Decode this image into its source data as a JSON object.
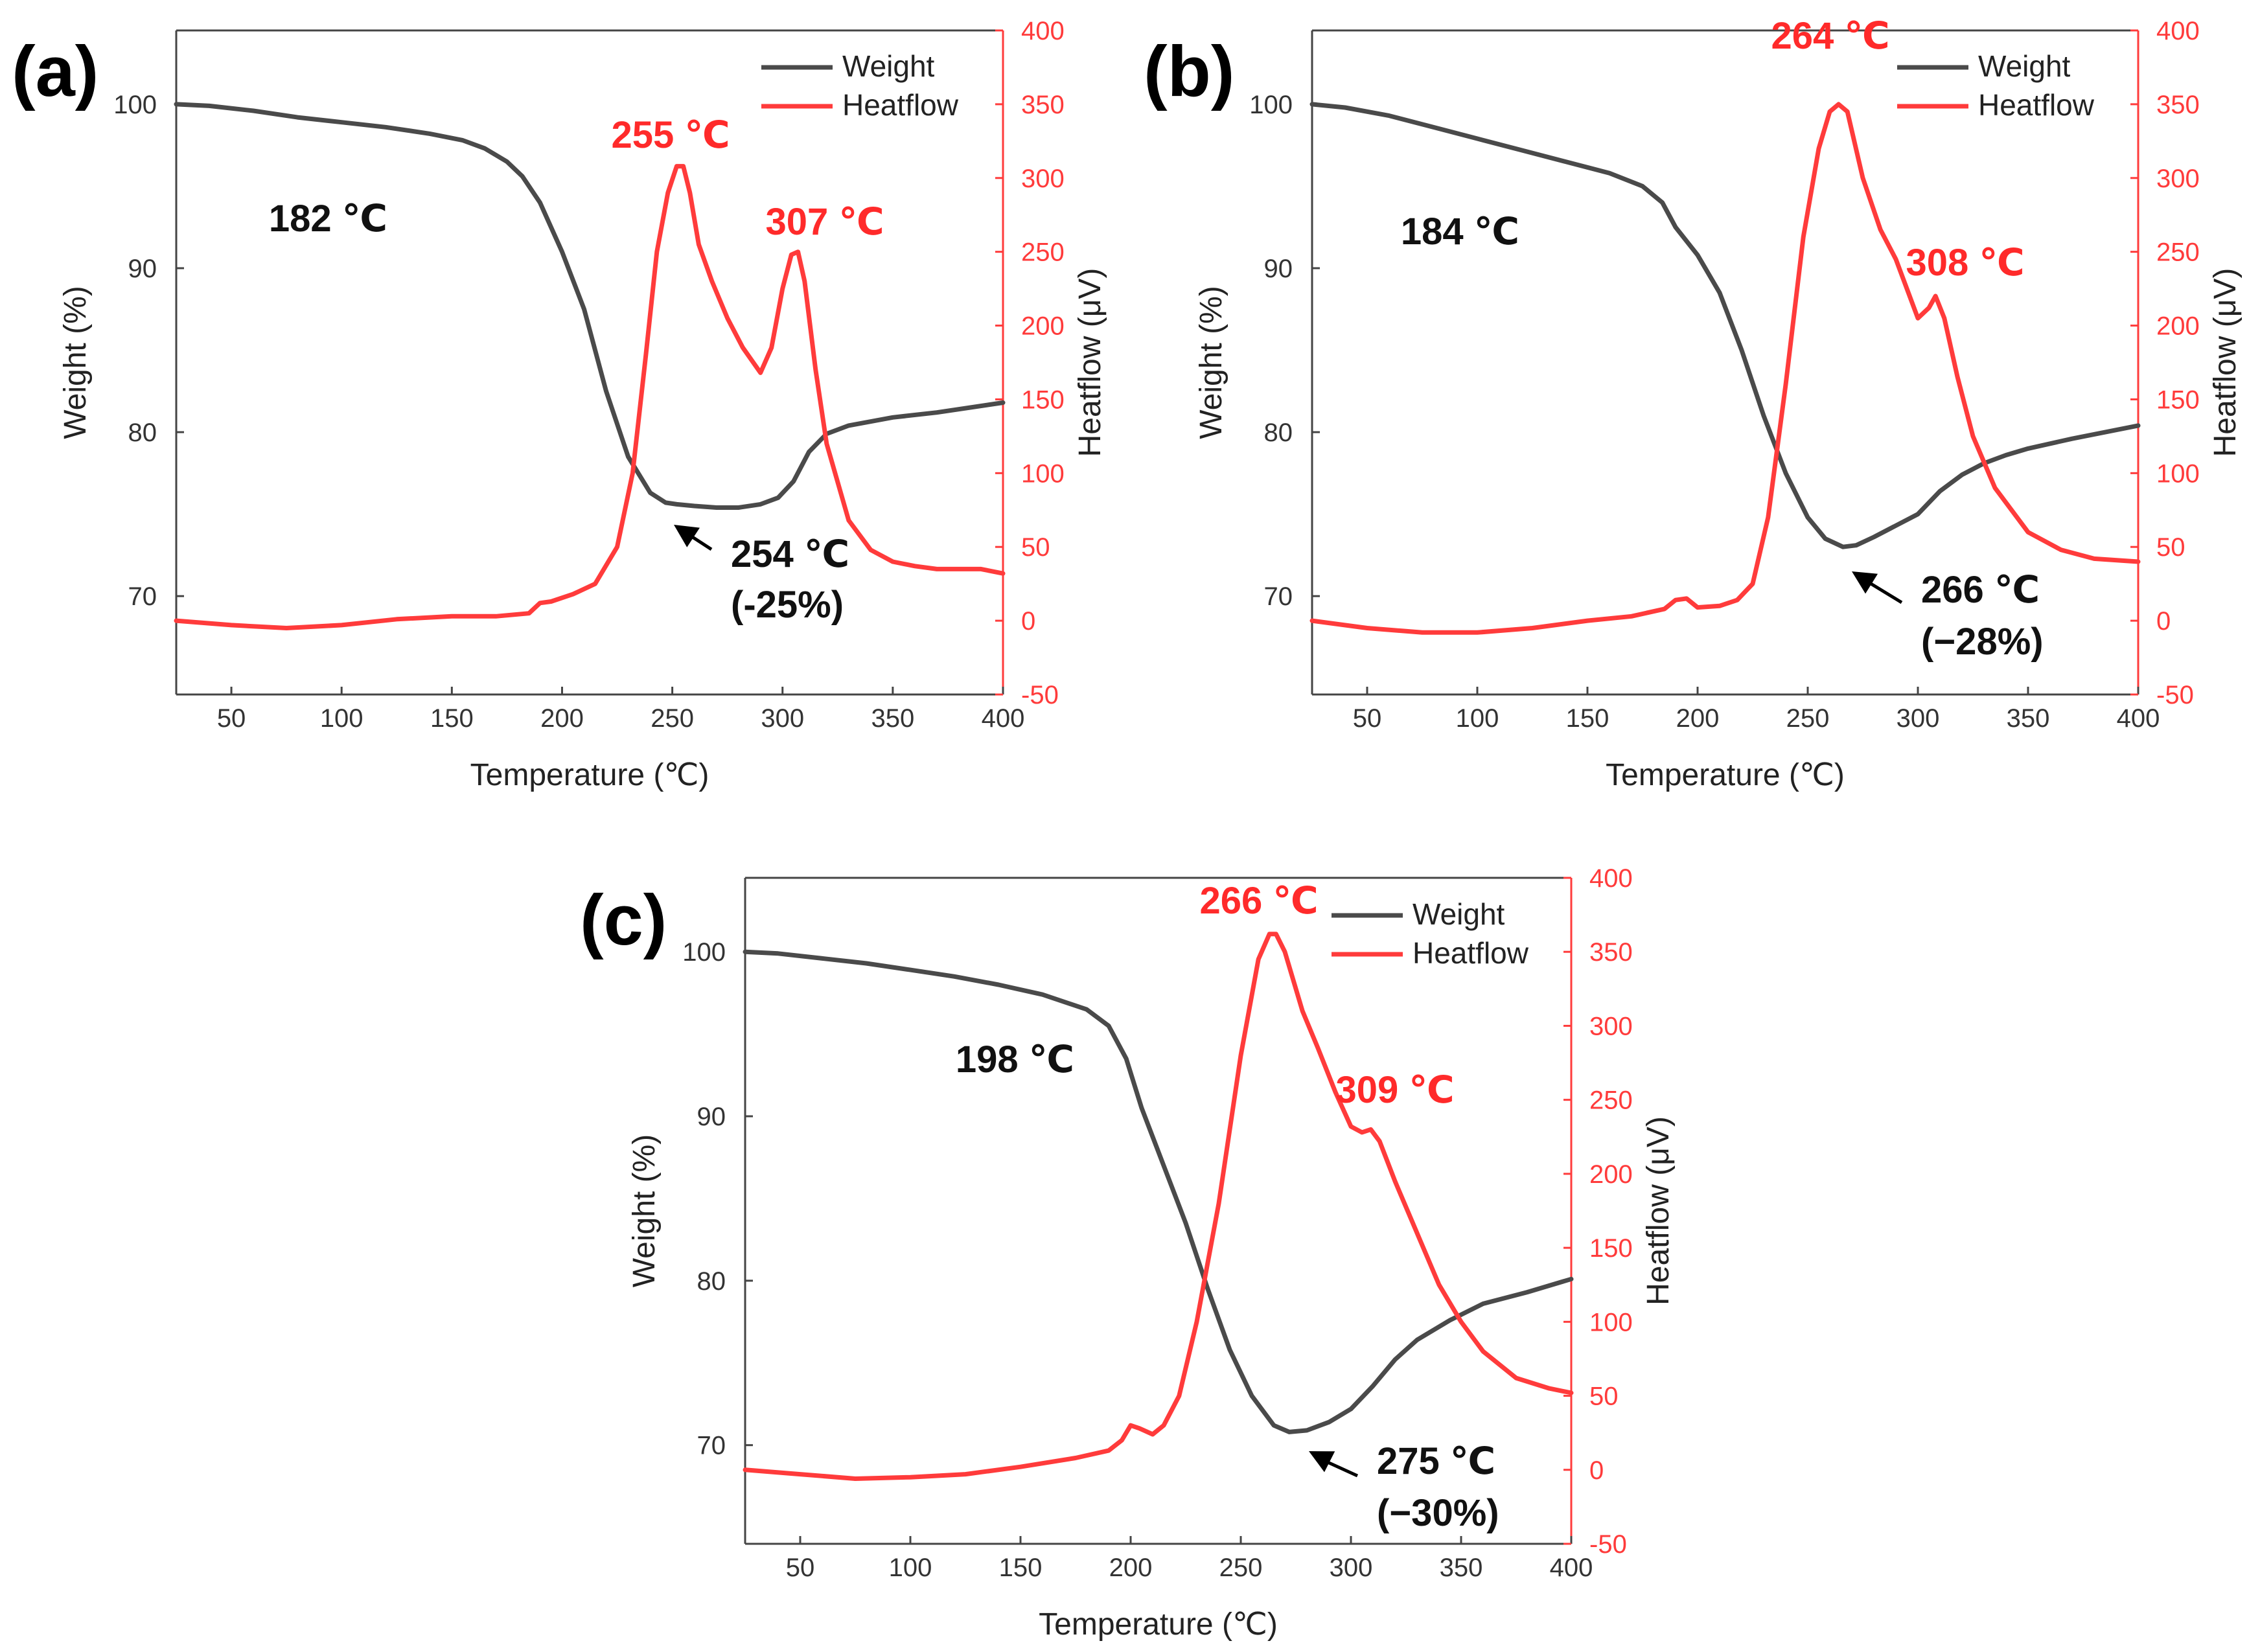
{
  "figure": {
    "colors": {
      "weight": "#4a4a4a",
      "heatflow": "#ff3b3b",
      "left_axis": "#444444",
      "right_axis": "#ff3b3b",
      "annotation_black": "#111111",
      "annotation_red": "#ff2a2a"
    }
  },
  "chart_data": [
    {
      "type": "line",
      "panel_label": "(a)",
      "xlabel": "Temperature (℃)",
      "ylabel": "Weight (%)",
      "y2label": "Heatflow (μV)",
      "xlim": [
        25,
        400
      ],
      "ylim": [
        64,
        104.5
      ],
      "y2lim": [
        -50,
        400
      ],
      "x_ticks": [
        50,
        100,
        150,
        200,
        250,
        300,
        350,
        400
      ],
      "y_ticks": [
        70,
        80,
        90,
        100
      ],
      "y2_ticks": [
        -50,
        0,
        50,
        100,
        150,
        200,
        250,
        300,
        350,
        400
      ],
      "legend": {
        "position": "top-right",
        "entries": [
          "Weight",
          "Heatflow"
        ]
      },
      "series": [
        {
          "name": "Weight",
          "axis": "left",
          "x": [
            25,
            40,
            60,
            80,
            100,
            120,
            140,
            155,
            165,
            175,
            182,
            190,
            200,
            210,
            220,
            230,
            240,
            247,
            252,
            260,
            270,
            280,
            290,
            298,
            305,
            312,
            320,
            330,
            350,
            370,
            400
          ],
          "y": [
            100,
            99.9,
            99.6,
            99.2,
            98.9,
            98.6,
            98.2,
            97.8,
            97.3,
            96.5,
            95.6,
            94.0,
            91.0,
            87.5,
            82.5,
            78.5,
            76.3,
            75.7,
            75.6,
            75.5,
            75.4,
            75.4,
            75.6,
            76.0,
            77.0,
            78.8,
            79.9,
            80.4,
            80.9,
            81.2,
            81.8
          ]
        },
        {
          "name": "Heatflow",
          "axis": "right",
          "x": [
            25,
            50,
            75,
            100,
            125,
            150,
            170,
            185,
            190,
            195,
            205,
            215,
            225,
            232,
            238,
            243,
            248,
            252,
            255,
            258,
            262,
            268,
            275,
            282,
            290,
            295,
            300,
            304,
            307,
            310,
            315,
            320,
            330,
            340,
            350,
            360,
            370,
            380,
            390,
            400
          ],
          "y": [
            0,
            -3,
            -5,
            -3,
            1,
            3,
            3,
            5,
            12,
            13,
            18,
            25,
            50,
            100,
            180,
            250,
            290,
            308,
            308,
            290,
            255,
            230,
            205,
            185,
            168,
            185,
            225,
            248,
            250,
            230,
            170,
            120,
            68,
            48,
            40,
            37,
            35,
            35,
            35,
            32
          ]
        }
      ],
      "annotations": [
        {
          "text": "182 ℃",
          "color": "black"
        },
        {
          "text": "255 ℃",
          "color": "red"
        },
        {
          "text": "307 ℃",
          "color": "red"
        },
        {
          "text": "254 ℃",
          "color": "black"
        },
        {
          "text": "(-25%)",
          "color": "black"
        }
      ]
    },
    {
      "type": "line",
      "panel_label": "(b)",
      "xlabel": "Temperature (℃)",
      "ylabel": "Weight (%)",
      "y2label": "Heatflow (μV)",
      "xlim": [
        25,
        400
      ],
      "ylim": [
        64,
        104.5
      ],
      "y2lim": [
        -50,
        400
      ],
      "x_ticks": [
        50,
        100,
        150,
        200,
        250,
        300,
        350,
        400
      ],
      "y_ticks": [
        70,
        80,
        90,
        100
      ],
      "y2_ticks": [
        -50,
        0,
        50,
        100,
        150,
        200,
        250,
        300,
        350,
        400
      ],
      "legend": {
        "position": "top-right",
        "entries": [
          "Weight",
          "Heatflow"
        ]
      },
      "series": [
        {
          "name": "Weight",
          "axis": "left",
          "x": [
            25,
            40,
            60,
            80,
            100,
            120,
            140,
            160,
            175,
            184,
            190,
            200,
            210,
            220,
            230,
            240,
            250,
            258,
            266,
            272,
            280,
            290,
            300,
            310,
            320,
            330,
            340,
            350,
            370,
            400
          ],
          "y": [
            100,
            99.8,
            99.3,
            98.6,
            97.9,
            97.2,
            96.5,
            95.8,
            95.0,
            94.0,
            92.5,
            90.8,
            88.5,
            85.0,
            81.0,
            77.5,
            74.8,
            73.5,
            73.0,
            73.1,
            73.6,
            74.3,
            75.0,
            76.4,
            77.4,
            78.1,
            78.6,
            79.0,
            79.6,
            80.4
          ]
        },
        {
          "name": "Heatflow",
          "axis": "right",
          "x": [
            25,
            50,
            75,
            100,
            125,
            150,
            170,
            185,
            190,
            195,
            200,
            210,
            218,
            225,
            232,
            240,
            248,
            255,
            260,
            264,
            268,
            275,
            283,
            290,
            295,
            300,
            305,
            308,
            312,
            318,
            325,
            335,
            350,
            365,
            380,
            400
          ],
          "y": [
            0,
            -5,
            -8,
            -8,
            -5,
            0,
            3,
            8,
            14,
            15,
            9,
            10,
            14,
            25,
            70,
            160,
            260,
            320,
            345,
            350,
            345,
            300,
            265,
            245,
            225,
            205,
            212,
            220,
            205,
            165,
            125,
            90,
            60,
            48,
            42,
            40
          ]
        }
      ],
      "annotations": [
        {
          "text": "184 ℃",
          "color": "black"
        },
        {
          "text": "264 ℃",
          "color": "red"
        },
        {
          "text": "308 ℃",
          "color": "red"
        },
        {
          "text": "266 ℃",
          "color": "black"
        },
        {
          "text": "(−28%)",
          "color": "black"
        }
      ]
    },
    {
      "type": "line",
      "panel_label": "(c)",
      "xlabel": "Temperature (℃)",
      "ylabel": "Weight (%)",
      "y2label": "Heatflow (μV)",
      "xlim": [
        25,
        400
      ],
      "ylim": [
        64,
        104.5
      ],
      "y2lim": [
        -50,
        400
      ],
      "x_ticks": [
        50,
        100,
        150,
        200,
        250,
        300,
        350,
        400
      ],
      "y_ticks": [
        70,
        80,
        90,
        100
      ],
      "y2_ticks": [
        -50,
        0,
        50,
        100,
        150,
        200,
        250,
        300,
        350,
        400
      ],
      "legend": {
        "position": "top-right",
        "entries": [
          "Weight",
          "Heatflow"
        ]
      },
      "series": [
        {
          "name": "Weight",
          "axis": "left",
          "x": [
            25,
            40,
            60,
            80,
            100,
            120,
            140,
            160,
            180,
            190,
            198,
            205,
            215,
            225,
            235,
            245,
            255,
            265,
            272,
            280,
            290,
            300,
            310,
            320,
            330,
            345,
            360,
            380,
            400
          ],
          "y": [
            100,
            99.9,
            99.6,
            99.3,
            98.9,
            98.5,
            98.0,
            97.4,
            96.5,
            95.5,
            93.5,
            90.5,
            87.0,
            83.5,
            79.5,
            75.8,
            73.0,
            71.2,
            70.8,
            70.9,
            71.4,
            72.2,
            73.6,
            75.2,
            76.4,
            77.6,
            78.6,
            79.3,
            80.1
          ]
        },
        {
          "name": "Heatflow",
          "axis": "right",
          "x": [
            25,
            50,
            75,
            100,
            125,
            150,
            175,
            190,
            196,
            200,
            204,
            210,
            215,
            222,
            230,
            240,
            250,
            258,
            263,
            266,
            270,
            278,
            285,
            293,
            300,
            305,
            309,
            313,
            320,
            330,
            340,
            350,
            360,
            375,
            390,
            400
          ],
          "y": [
            0,
            -3,
            -6,
            -5,
            -3,
            2,
            8,
            13,
            20,
            30,
            28,
            24,
            30,
            50,
            100,
            180,
            280,
            345,
            362,
            362,
            350,
            310,
            285,
            255,
            232,
            228,
            230,
            222,
            195,
            160,
            125,
            100,
            80,
            62,
            55,
            52
          ]
        }
      ],
      "annotations": [
        {
          "text": "198 ℃",
          "color": "black"
        },
        {
          "text": "266 ℃",
          "color": "red"
        },
        {
          "text": "309 ℃",
          "color": "red"
        },
        {
          "text": "275 ℃",
          "color": "black"
        },
        {
          "text": "(−30%)",
          "color": "black"
        }
      ]
    }
  ]
}
